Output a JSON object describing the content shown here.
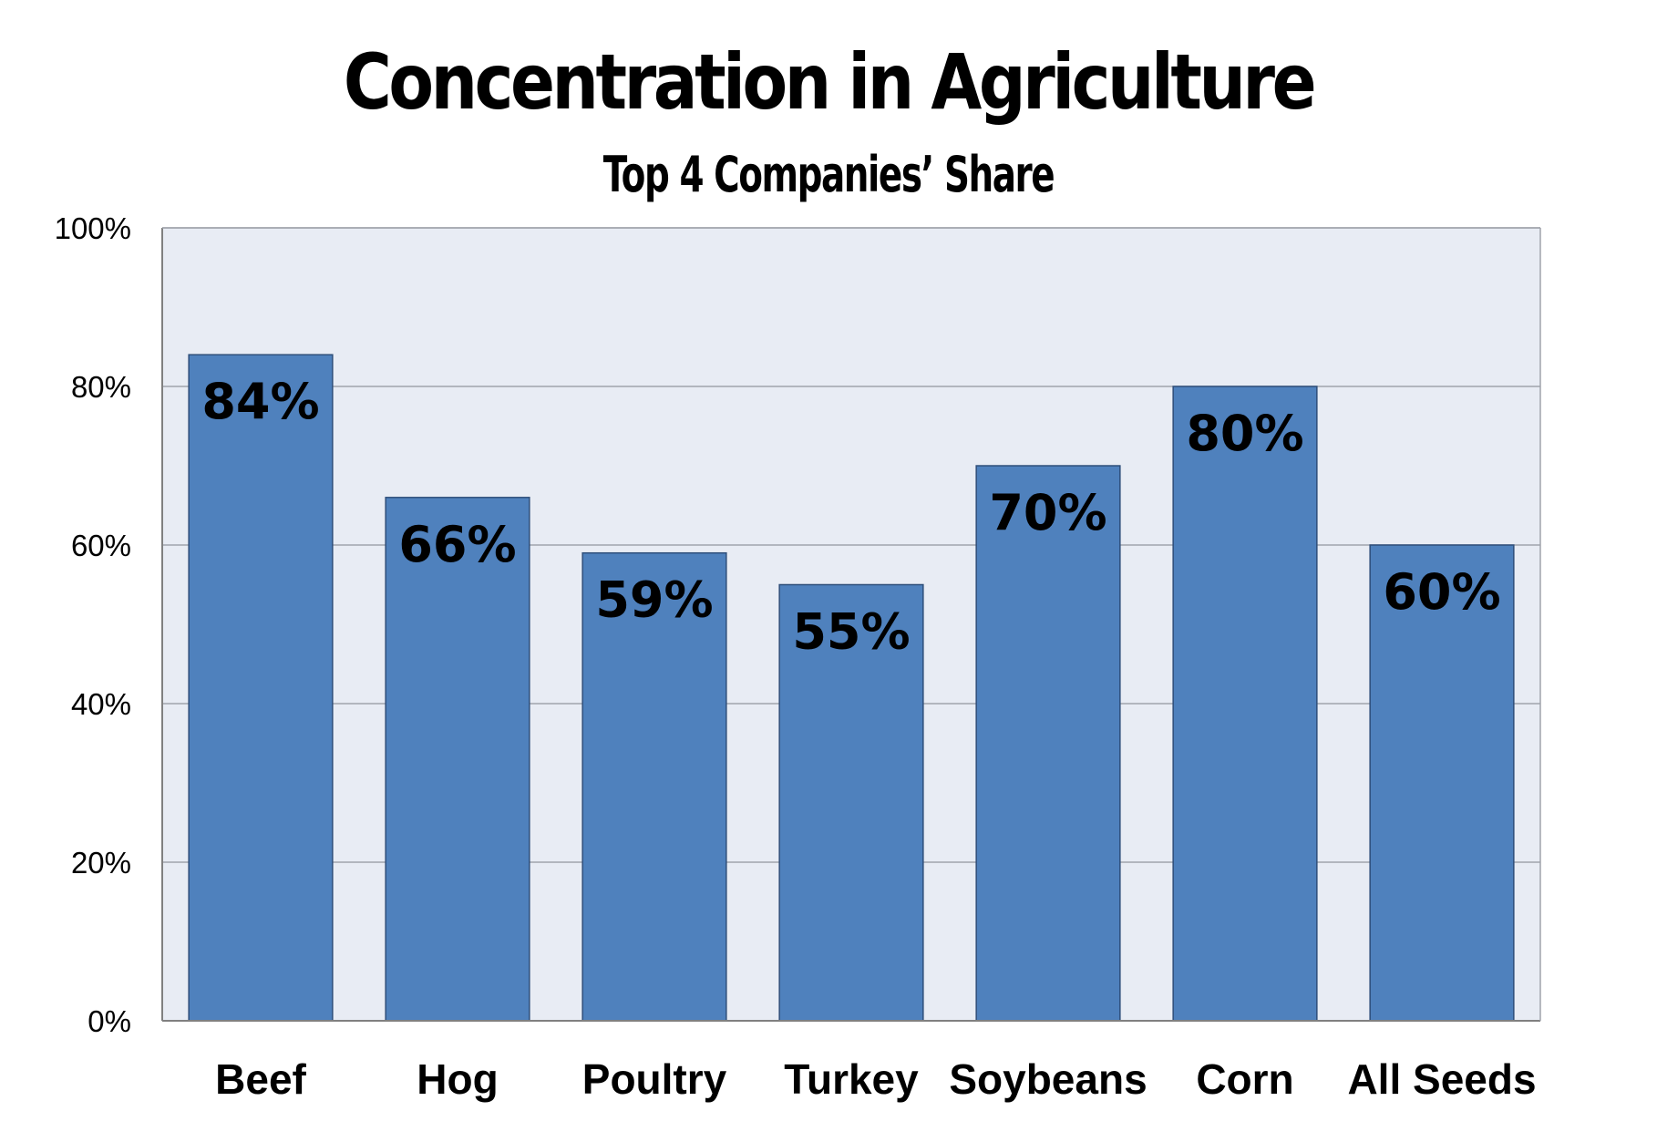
{
  "chart_data": {
    "type": "bar",
    "title": "Concentration in Agriculture",
    "subtitle": "Top 4 Companies’ Share",
    "xlabel": "",
    "ylabel": "",
    "categories": [
      "Beef",
      "Hog",
      "Poultry",
      "Turkey",
      "Soybeans",
      "Corn",
      "All Seeds"
    ],
    "values": [
      84,
      66,
      59,
      55,
      70,
      80,
      60
    ],
    "data_labels": [
      "84%",
      "66%",
      "59%",
      "55%",
      "70%",
      "80%",
      "60%"
    ],
    "ylim": [
      0,
      100
    ],
    "yticks": [
      0,
      20,
      40,
      60,
      80,
      100
    ],
    "ytick_labels": [
      "0%",
      "20%",
      "40%",
      "60%",
      "80%",
      "100%"
    ],
    "grid": true,
    "legend": "none",
    "colors": {
      "bar": "#4f81bd",
      "bar_border": "#2f4f7a",
      "plot_background": "#e8ecf4",
      "gridline": "#a0a4ac",
      "axis": "#808080"
    }
  }
}
